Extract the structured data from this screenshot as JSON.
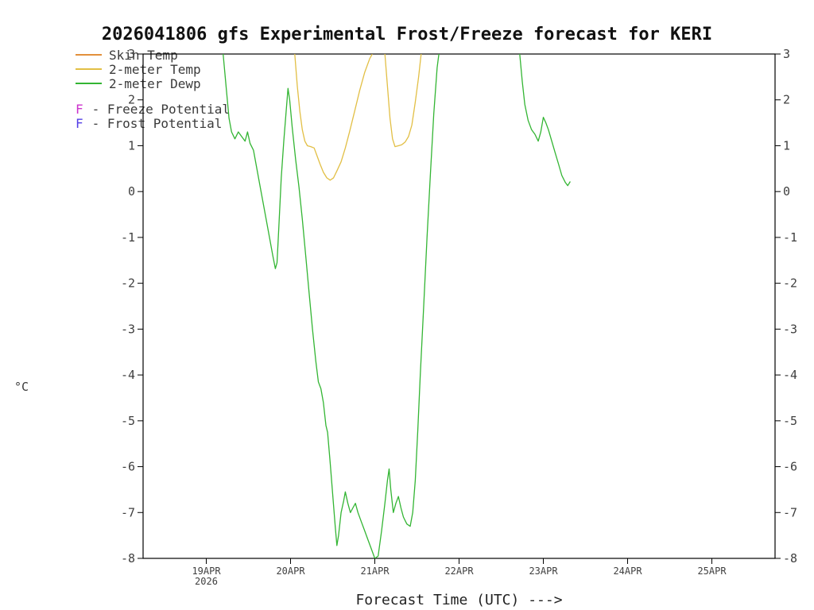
{
  "title": "2026041806 gfs Experimental Frost/Freeze forecast for KERI",
  "y_axis_unit": "°C",
  "x_axis_label": "Forecast Time (UTC) --->",
  "colors": {
    "skin_temp": "#e2903c",
    "two_meter_temp": "#e2bf45",
    "two_meter_dewp": "#33b533",
    "freeze_potential": "#cc33cc",
    "frost_potential": "#5540e6",
    "axis": "#000000",
    "tick_text": "#3f3f3f"
  },
  "legend": {
    "series": [
      {
        "label": "Skin Temp",
        "color": "#e2903c"
      },
      {
        "label": "2-meter Temp",
        "color": "#e2bf45"
      },
      {
        "label": "2-meter Dewp",
        "color": "#33b533"
      }
    ],
    "flags": [
      {
        "letter": "F",
        "letter_color": "#cc33cc",
        "label": "- Freeze Potential"
      },
      {
        "letter": "F",
        "letter_color": "#5540e6",
        "label": "- Frost Potential"
      }
    ]
  },
  "chart_data": {
    "type": "line",
    "title": "2026041806 gfs Experimental Frost/Freeze forecast for KERI",
    "xlabel": "Forecast Time (UTC) --->",
    "ylabel": "°C",
    "x_unit": "decimal day of April 2026",
    "xlim": [
      18.25,
      25.75
    ],
    "ylim": [
      -8,
      3
    ],
    "grid": false,
    "legend_position": "top-left",
    "y_ticks": [
      3,
      2,
      1,
      0,
      -1,
      -2,
      -3,
      -4,
      -5,
      -6,
      -7,
      -8
    ],
    "x_ticks": [
      {
        "value": 19,
        "label": "19APR",
        "sublabel": "2026"
      },
      {
        "value": 20,
        "label": "20APR",
        "sublabel": ""
      },
      {
        "value": 21,
        "label": "21APR",
        "sublabel": ""
      },
      {
        "value": 22,
        "label": "22APR",
        "sublabel": ""
      },
      {
        "value": 23,
        "label": "23APR",
        "sublabel": ""
      },
      {
        "value": 24,
        "label": "24APR",
        "sublabel": ""
      },
      {
        "value": 25,
        "label": "25APR",
        "sublabel": ""
      }
    ],
    "series": [
      {
        "name": "Skin Temp",
        "color": "#e2903c",
        "note": "entirely above chart top (>3°C); not visible in plot area",
        "segments": []
      },
      {
        "name": "2-meter Temp",
        "color": "#e2bf45",
        "segments": [
          [
            [
              20.05,
              3.0
            ],
            [
              20.08,
              2.3
            ],
            [
              20.11,
              1.75
            ],
            [
              20.14,
              1.35
            ],
            [
              20.17,
              1.1
            ],
            [
              20.2,
              1.0
            ],
            [
              20.24,
              0.98
            ],
            [
              20.28,
              0.95
            ],
            [
              20.31,
              0.8
            ],
            [
              20.35,
              0.6
            ],
            [
              20.39,
              0.42
            ],
            [
              20.43,
              0.3
            ],
            [
              20.47,
              0.25
            ],
            [
              20.51,
              0.3
            ],
            [
              20.55,
              0.45
            ],
            [
              20.6,
              0.65
            ],
            [
              20.65,
              0.95
            ],
            [
              20.7,
              1.3
            ],
            [
              20.76,
              1.75
            ],
            [
              20.82,
              2.2
            ],
            [
              20.88,
              2.6
            ],
            [
              20.94,
              2.9
            ],
            [
              20.97,
              3.0
            ]
          ],
          [
            [
              21.12,
              3.0
            ],
            [
              21.15,
              2.3
            ],
            [
              21.18,
              1.6
            ],
            [
              21.21,
              1.15
            ],
            [
              21.24,
              0.98
            ],
            [
              21.28,
              1.0
            ],
            [
              21.32,
              1.02
            ],
            [
              21.36,
              1.08
            ],
            [
              21.4,
              1.2
            ],
            [
              21.44,
              1.45
            ],
            [
              21.48,
              1.95
            ],
            [
              21.52,
              2.5
            ],
            [
              21.55,
              3.0
            ]
          ]
        ]
      },
      {
        "name": "2-meter Dewp",
        "color": "#33b533",
        "segments": [
          [
            [
              19.2,
              3.0
            ],
            [
              19.24,
              2.2
            ],
            [
              19.27,
              1.6
            ],
            [
              19.3,
              1.3
            ],
            [
              19.34,
              1.15
            ],
            [
              19.38,
              1.3
            ],
            [
              19.42,
              1.2
            ],
            [
              19.46,
              1.1
            ],
            [
              19.49,
              1.3
            ],
            [
              19.52,
              1.05
            ],
            [
              19.56,
              0.9
            ],
            [
              19.6,
              0.5
            ],
            [
              19.65,
              0.0
            ],
            [
              19.7,
              -0.5
            ],
            [
              19.75,
              -1.0
            ],
            [
              19.79,
              -1.4
            ],
            [
              19.82,
              -1.68
            ],
            [
              19.84,
              -1.55
            ],
            [
              19.86,
              -0.8
            ],
            [
              19.89,
              0.3
            ],
            [
              19.92,
              1.1
            ],
            [
              19.95,
              1.8
            ],
            [
              19.97,
              2.25
            ],
            [
              19.99,
              2.0
            ],
            [
              20.02,
              1.4
            ],
            [
              20.06,
              0.7
            ],
            [
              20.1,
              0.1
            ],
            [
              20.14,
              -0.6
            ],
            [
              20.18,
              -1.4
            ],
            [
              20.22,
              -2.2
            ],
            [
              20.26,
              -3.0
            ],
            [
              20.3,
              -3.7
            ],
            [
              20.33,
              -4.15
            ],
            [
              20.36,
              -4.3
            ],
            [
              20.39,
              -4.6
            ],
            [
              20.42,
              -5.1
            ],
            [
              20.44,
              -5.25
            ],
            [
              20.47,
              -5.9
            ],
            [
              20.5,
              -6.6
            ],
            [
              20.53,
              -7.3
            ],
            [
              20.55,
              -7.72
            ],
            [
              20.57,
              -7.5
            ],
            [
              20.6,
              -7.0
            ],
            [
              20.63,
              -6.75
            ],
            [
              20.65,
              -6.55
            ],
            [
              20.68,
              -6.8
            ],
            [
              20.71,
              -7.0
            ],
            [
              20.74,
              -6.9
            ],
            [
              20.77,
              -6.8
            ],
            [
              20.8,
              -7.0
            ],
            [
              20.84,
              -7.2
            ],
            [
              20.88,
              -7.4
            ],
            [
              20.92,
              -7.6
            ],
            [
              20.96,
              -7.8
            ],
            [
              21.0,
              -8.0
            ],
            [
              21.04,
              -7.95
            ],
            [
              21.08,
              -7.4
            ],
            [
              21.12,
              -6.8
            ],
            [
              21.15,
              -6.3
            ],
            [
              21.17,
              -6.05
            ],
            [
              21.19,
              -6.5
            ],
            [
              21.22,
              -7.0
            ],
            [
              21.25,
              -6.8
            ],
            [
              21.28,
              -6.65
            ],
            [
              21.31,
              -6.9
            ],
            [
              21.34,
              -7.1
            ],
            [
              21.38,
              -7.25
            ],
            [
              21.42,
              -7.3
            ],
            [
              21.45,
              -7.0
            ],
            [
              21.48,
              -6.3
            ],
            [
              21.51,
              -5.2
            ],
            [
              21.54,
              -4.0
            ],
            [
              21.58,
              -2.5
            ],
            [
              21.62,
              -1.0
            ],
            [
              21.66,
              0.4
            ],
            [
              21.7,
              1.7
            ],
            [
              21.74,
              2.7
            ],
            [
              21.76,
              3.0
            ]
          ],
          [
            [
              22.72,
              3.0
            ],
            [
              22.75,
              2.4
            ],
            [
              22.78,
              1.9
            ],
            [
              22.82,
              1.55
            ],
            [
              22.86,
              1.35
            ],
            [
              22.9,
              1.25
            ],
            [
              22.94,
              1.1
            ],
            [
              22.97,
              1.3
            ],
            [
              23.0,
              1.62
            ],
            [
              23.03,
              1.5
            ],
            [
              23.06,
              1.35
            ],
            [
              23.1,
              1.1
            ],
            [
              23.14,
              0.85
            ],
            [
              23.18,
              0.6
            ],
            [
              23.22,
              0.35
            ],
            [
              23.26,
              0.2
            ],
            [
              23.29,
              0.13
            ],
            [
              23.32,
              0.22
            ]
          ]
        ]
      }
    ]
  }
}
